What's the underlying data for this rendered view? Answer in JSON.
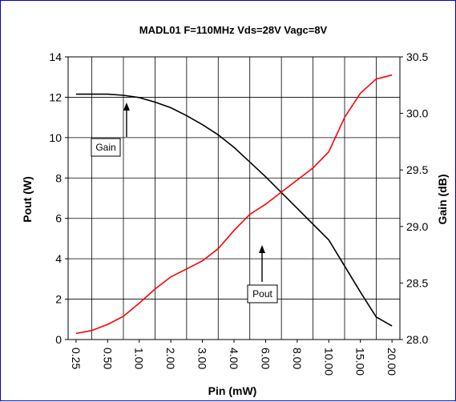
{
  "chart_data": {
    "type": "line",
    "title": "MADL01 F=110MHz Vds=28V Vagc=8V",
    "xlabel": "Pin (mW)",
    "ylabel_left": "Pout (W)",
    "ylabel_right": "Gain (dB)",
    "categories": [
      "0.25",
      "0.50",
      "1.00",
      "2.00",
      "3.00",
      "4.00",
      "6.00",
      "8.00",
      "10.00",
      "15.00",
      "20.00"
    ],
    "y_left_range": [
      0,
      14
    ],
    "y_left_ticks": [
      0,
      2,
      4,
      6,
      8,
      10,
      12,
      14
    ],
    "y_right_range": [
      28.0,
      30.5
    ],
    "y_right_ticks": [
      "28.0",
      "28.5",
      "29.0",
      "29.5",
      "30.0",
      "30.5"
    ],
    "grid": true,
    "series": [
      {
        "name": "Gain",
        "axis": "right",
        "color": "#000000",
        "x": [
          0.0,
          0.5,
          1.0,
          1.5,
          2.0,
          2.5,
          3.0,
          3.5,
          4.0,
          4.5,
          5.0,
          5.5,
          6.0,
          6.5,
          7.0,
          7.5,
          8.0,
          8.5,
          9.0,
          9.5,
          10.0
        ],
        "values": [
          30.17,
          30.17,
          30.17,
          30.16,
          30.14,
          30.1,
          30.05,
          29.98,
          29.9,
          29.81,
          29.7,
          29.57,
          29.44,
          29.3,
          29.16,
          29.02,
          28.88,
          28.65,
          28.42,
          28.2,
          28.12
        ]
      },
      {
        "name": "Pout",
        "axis": "left",
        "color": "#ff0000",
        "x": [
          0.0,
          0.5,
          1.0,
          1.5,
          2.0,
          2.5,
          3.0,
          3.5,
          4.0,
          4.5,
          5.0,
          5.5,
          6.0,
          6.5,
          7.0,
          7.5,
          8.0,
          8.5,
          9.0,
          9.5,
          10.0
        ],
        "values": [
          0.3,
          0.45,
          0.75,
          1.15,
          1.8,
          2.5,
          3.1,
          3.5,
          3.9,
          4.5,
          5.4,
          6.2,
          6.7,
          7.3,
          7.9,
          8.5,
          9.3,
          11.0,
          12.2,
          12.9,
          13.1
        ]
      }
    ],
    "annotations": [
      {
        "text": "Gain",
        "series": "Gain",
        "arrow": "up"
      },
      {
        "text": "Pout",
        "series": "Pout",
        "arrow": "up"
      }
    ]
  }
}
